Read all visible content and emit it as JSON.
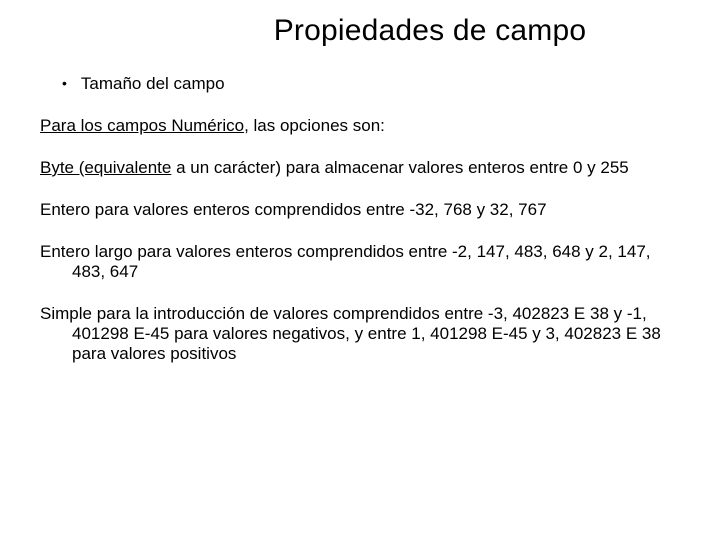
{
  "title": "Propiedades de campo",
  "bullet": {
    "marker": "•",
    "text": "Tamaño del campo"
  },
  "intro": {
    "prefix": "Para los campos Numérico",
    "suffix": ", las opciones son:"
  },
  "p_byte": {
    "prefix": "Byte (equivalente",
    "rest": " a un carácter) para almacenar valores enteros entre 0 y 255"
  },
  "p_entero": "Entero para valores enteros comprendidos entre -32, 768 y 32, 767",
  "p_largo": {
    "prefix": "Entero largo",
    "rest": " para valores enteros comprendidos entre -2, 147, 483, 648 y 2, 147, 483, 647"
  },
  "p_simple": {
    "prefix": "Simple",
    "rest": " para la introducción de valores comprendidos entre -3, 402823 E 38 y -1, 401298 E-45 para valores negativos, y entre 1, 401298 E-45 y 3, 402823 E 38 para valores positivos"
  },
  "colors": {
    "text": "#000000",
    "background": "#ffffff"
  },
  "fontsizes": {
    "title": 30,
    "body": 17
  }
}
